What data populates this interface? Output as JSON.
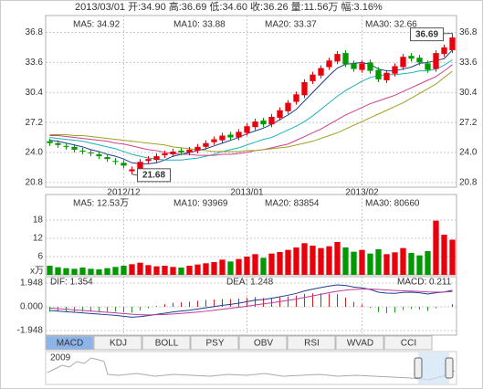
{
  "header": "2013/03/01 开:34.90 高:36.69 低:34.60 收:36.26 量:11.56万 幅:3.16%",
  "chart_data": [
    {
      "type": "candlestick",
      "categories": [
        null,
        null,
        null,
        null,
        null,
        null,
        null,
        null,
        null,
        "2012/12",
        null,
        null,
        null,
        null,
        null,
        null,
        null,
        null,
        null,
        null,
        null,
        null,
        null,
        null,
        "2013/01",
        null,
        null,
        null,
        null,
        null,
        null,
        null,
        null,
        null,
        null,
        null,
        null,
        null,
        "2013/02",
        null,
        null,
        null,
        null,
        null,
        null,
        null,
        null,
        null,
        null,
        null
      ],
      "open": [
        25.2,
        25.0,
        24.7,
        24.6,
        24.2,
        24.0,
        23.8,
        23.5,
        23.1,
        22.9,
        22.0,
        22.3,
        23.1,
        23.2,
        23.7,
        23.8,
        24.2,
        24.0,
        24.2,
        24.6,
        25.1,
        25.3,
        25.9,
        25.6,
        26.1,
        26.7,
        27.4,
        27.0,
        27.7,
        28.4,
        29.4,
        30.1,
        31.6,
        32.2,
        33.1,
        33.7,
        34.6,
        33.5,
        32.8,
        33.6,
        32.8,
        31.7,
        32.4,
        33.1,
        34.3,
        34.1,
        33.5,
        32.9,
        34.5,
        34.9
      ],
      "high": [
        25.5,
        25.3,
        25.0,
        24.9,
        24.5,
        24.3,
        24.1,
        23.8,
        23.4,
        23.2,
        22.5,
        23.3,
        23.6,
        23.9,
        24.2,
        24.4,
        24.5,
        24.6,
        24.9,
        25.3,
        25.7,
        26.1,
        26.2,
        26.5,
        27.1,
        27.6,
        27.7,
        28.1,
        28.8,
        29.6,
        30.5,
        31.8,
        32.6,
        33.3,
        34.1,
        34.8,
        34.9,
        33.8,
        33.8,
        33.9,
        33.1,
        32.8,
        33.5,
        34.5,
        34.6,
        34.4,
        33.8,
        34.9,
        35.5,
        36.69
      ],
      "low": [
        24.7,
        24.5,
        24.3,
        24.0,
        23.8,
        23.6,
        23.3,
        23.0,
        22.7,
        22.3,
        21.68,
        22.0,
        22.8,
        22.9,
        23.4,
        23.5,
        23.7,
        23.7,
        23.9,
        24.3,
        24.8,
        25.0,
        25.3,
        25.3,
        25.8,
        26.4,
        26.7,
        26.7,
        27.4,
        28.1,
        29.1,
        29.8,
        31.3,
        31.9,
        32.8,
        33.4,
        33.1,
        32.6,
        32.5,
        32.4,
        31.5,
        31.4,
        32.1,
        32.8,
        33.7,
        33.3,
        32.5,
        32.6,
        34.2,
        34.6
      ],
      "close": [
        25.0,
        24.8,
        24.6,
        24.3,
        24.1,
        23.9,
        23.6,
        23.3,
        23.0,
        22.6,
        22.2,
        23.0,
        23.3,
        23.6,
        23.9,
        24.1,
        24.0,
        24.3,
        24.6,
        25.0,
        25.4,
        25.8,
        25.6,
        26.2,
        26.8,
        27.3,
        27.0,
        27.8,
        28.5,
        29.3,
        30.2,
        31.5,
        32.3,
        33.0,
        33.8,
        34.5,
        33.4,
        32.9,
        33.5,
        32.7,
        31.8,
        32.5,
        33.2,
        34.2,
        34.0,
        33.6,
        32.8,
        34.6,
        35.2,
        36.26
      ],
      "up_color": "#e8000b",
      "down_color": "#009a00",
      "series": [
        {
          "name": "MA5: 34.92",
          "color": "#1f3f8f",
          "values": [
            25.3,
            25.2,
            25.0,
            24.8,
            24.6,
            24.3,
            24.1,
            23.8,
            23.6,
            23.3,
            22.9,
            22.8,
            22.8,
            22.9,
            23.2,
            23.6,
            23.8,
            24.0,
            24.2,
            24.4,
            24.7,
            25.0,
            25.3,
            25.6,
            26.0,
            26.3,
            26.6,
            27.0,
            27.5,
            28.0,
            28.6,
            29.5,
            30.4,
            31.3,
            32.2,
            33.0,
            33.4,
            33.5,
            33.6,
            33.4,
            32.9,
            32.7,
            32.7,
            32.9,
            33.1,
            33.5,
            33.6,
            33.8,
            34.0,
            34.92
          ]
        },
        {
          "name": "MA10: 33.88",
          "color": "#1fb0c0",
          "values": [
            25.6,
            25.5,
            25.4,
            25.3,
            25.2,
            25.0,
            24.8,
            24.6,
            24.4,
            24.1,
            23.8,
            23.6,
            23.4,
            23.3,
            23.2,
            23.2,
            23.2,
            23.3,
            23.4,
            23.6,
            23.8,
            24.1,
            24.3,
            24.5,
            24.8,
            25.1,
            25.4,
            25.6,
            26.0,
            26.4,
            26.8,
            27.3,
            27.9,
            28.6,
            29.3,
            30.0,
            30.6,
            31.1,
            31.6,
            32.0,
            32.2,
            32.3,
            32.3,
            32.4,
            32.5,
            32.7,
            32.7,
            32.9,
            33.3,
            33.88
          ]
        },
        {
          "name": "MA20: 33.37",
          "color": "#d0408a",
          "values": [
            25.8,
            25.8,
            25.7,
            25.6,
            25.5,
            25.4,
            25.3,
            25.2,
            25.0,
            24.9,
            24.7,
            24.5,
            24.3,
            24.2,
            24.0,
            23.9,
            23.8,
            23.8,
            23.7,
            23.7,
            23.7,
            23.8,
            23.8,
            23.9,
            24.0,
            24.2,
            24.3,
            24.5,
            24.7,
            24.9,
            25.3,
            25.7,
            26.1,
            26.5,
            27.0,
            27.5,
            28.0,
            28.4,
            28.8,
            29.2,
            29.5,
            29.8,
            30.1,
            30.5,
            30.9,
            31.3,
            31.7,
            32.1,
            32.7,
            33.37
          ]
        },
        {
          "name": "MA30: 32.66",
          "color": "#a0a020",
          "values": [
            25.9,
            25.9,
            25.9,
            25.8,
            25.8,
            25.7,
            25.6,
            25.5,
            25.4,
            25.3,
            25.2,
            25.1,
            25.0,
            24.9,
            24.8,
            24.6,
            24.5,
            24.4,
            24.3,
            24.2,
            24.1,
            24.1,
            24.1,
            24.1,
            24.2,
            24.2,
            24.3,
            24.4,
            24.5,
            24.6,
            24.8,
            25.0,
            25.2,
            25.5,
            25.8,
            26.1,
            26.5,
            26.9,
            27.3,
            27.7,
            28.1,
            28.5,
            28.9,
            29.3,
            29.8,
            30.3,
            30.8,
            31.3,
            32.0,
            32.66
          ]
        }
      ],
      "ylim": [
        20.3,
        38.6
      ],
      "yticks": [
        20.8,
        {
          "value": 24,
          "label": "24.0"
        },
        27.2,
        30.4,
        33.6,
        36.8
      ],
      "grid": true
    },
    {
      "type": "bar",
      "unit": "x万",
      "values": [
        3,
        2.5,
        2.2,
        2,
        2.4,
        2,
        1.8,
        2.2,
        2.6,
        3,
        3.5,
        4,
        3.2,
        2.8,
        3,
        2.6,
        2.4,
        3,
        3.4,
        3.8,
        4.2,
        5,
        4.4,
        5.2,
        6,
        6.8,
        5.6,
        7,
        7.5,
        8.2,
        9,
        10.4,
        9.6,
        8.8,
        9.4,
        10.8,
        9,
        7.6,
        8.2,
        7,
        8.4,
        6.8,
        7.4,
        8.8,
        7.2,
        6.4,
        7.8,
        17.8,
        13.2,
        11.56
      ],
      "legend": [
        {
          "label": "MA5: 12.53万",
          "color": "#1f3f8f"
        },
        {
          "label": "MA10: 93969",
          "color": "#1fb0c0"
        },
        {
          "label": "MA20: 83854",
          "color": "#d0408a"
        },
        {
          "label": "MA30: 80660",
          "color": "#a0a020"
        }
      ],
      "ylim": [
        0,
        26.4
      ],
      "yticks": [
        6,
        12,
        18
      ],
      "grid": true
    },
    {
      "type": "macd",
      "series": [
        {
          "name": "DIF: 1.354",
          "color": "#1f3f8f",
          "values": [
            -0.3,
            -0.35,
            -0.4,
            -0.45,
            -0.5,
            -0.55,
            -0.6,
            -0.65,
            -0.7,
            -0.78,
            -0.85,
            -0.8,
            -0.72,
            -0.62,
            -0.52,
            -0.42,
            -0.35,
            -0.28,
            -0.18,
            -0.08,
            0.02,
            0.12,
            0.2,
            0.3,
            0.42,
            0.55,
            0.6,
            0.7,
            0.82,
            0.95,
            1.1,
            1.3,
            1.45,
            1.58,
            1.7,
            1.8,
            1.75,
            1.62,
            1.55,
            1.42,
            1.2,
            1.12,
            1.1,
            1.18,
            1.2,
            1.15,
            1.05,
            1.15,
            1.22,
            1.354
          ]
        },
        {
          "name": "DEA: 1.248",
          "color": "#c03aa0",
          "values": [
            -0.1,
            -0.15,
            -0.2,
            -0.25,
            -0.3,
            -0.35,
            -0.4,
            -0.45,
            -0.5,
            -0.55,
            -0.61,
            -0.65,
            -0.66,
            -0.65,
            -0.63,
            -0.59,
            -0.54,
            -0.49,
            -0.43,
            -0.36,
            -0.28,
            -0.2,
            -0.12,
            -0.04,
            0.05,
            0.15,
            0.24,
            0.33,
            0.43,
            0.53,
            0.64,
            0.77,
            0.9,
            1.03,
            1.16,
            1.28,
            1.37,
            1.42,
            1.45,
            1.46,
            1.42,
            1.38,
            1.34,
            1.31,
            1.29,
            1.26,
            1.22,
            1.21,
            1.22,
            1.248
          ]
        }
      ],
      "histogram": {
        "name": "MACD: 0.211",
        "up_color": "#d02020",
        "down_color": "#20a020",
        "values": [
          -0.4,
          -0.4,
          -0.4,
          -0.4,
          -0.4,
          -0.4,
          -0.4,
          -0.4,
          -0.4,
          -0.46,
          -0.48,
          -0.3,
          -0.12,
          0.06,
          0.22,
          0.34,
          0.38,
          0.42,
          0.5,
          0.56,
          0.6,
          0.64,
          0.64,
          0.68,
          0.74,
          0.8,
          0.72,
          0.74,
          0.78,
          0.84,
          0.92,
          1.06,
          1.1,
          1.1,
          1.08,
          1.04,
          0.76,
          0.4,
          0.2,
          -0.08,
          -0.44,
          -0.52,
          -0.48,
          -0.26,
          -0.18,
          -0.22,
          -0.34,
          -0.12,
          0,
          0.211
        ]
      },
      "ylim": [
        -2.32,
        2.47
      ],
      "yticks": [
        -1.948,
        {
          "value": 0,
          "label": "0.000"
        },
        1.948
      ]
    }
  ],
  "tabs": [
    "MACD",
    "KDJ",
    "BOLL",
    "PSY",
    "OBV",
    "RSI",
    "WVAD",
    "CCI"
  ],
  "selected_tab": 0,
  "navigator": {
    "label": "2009"
  }
}
